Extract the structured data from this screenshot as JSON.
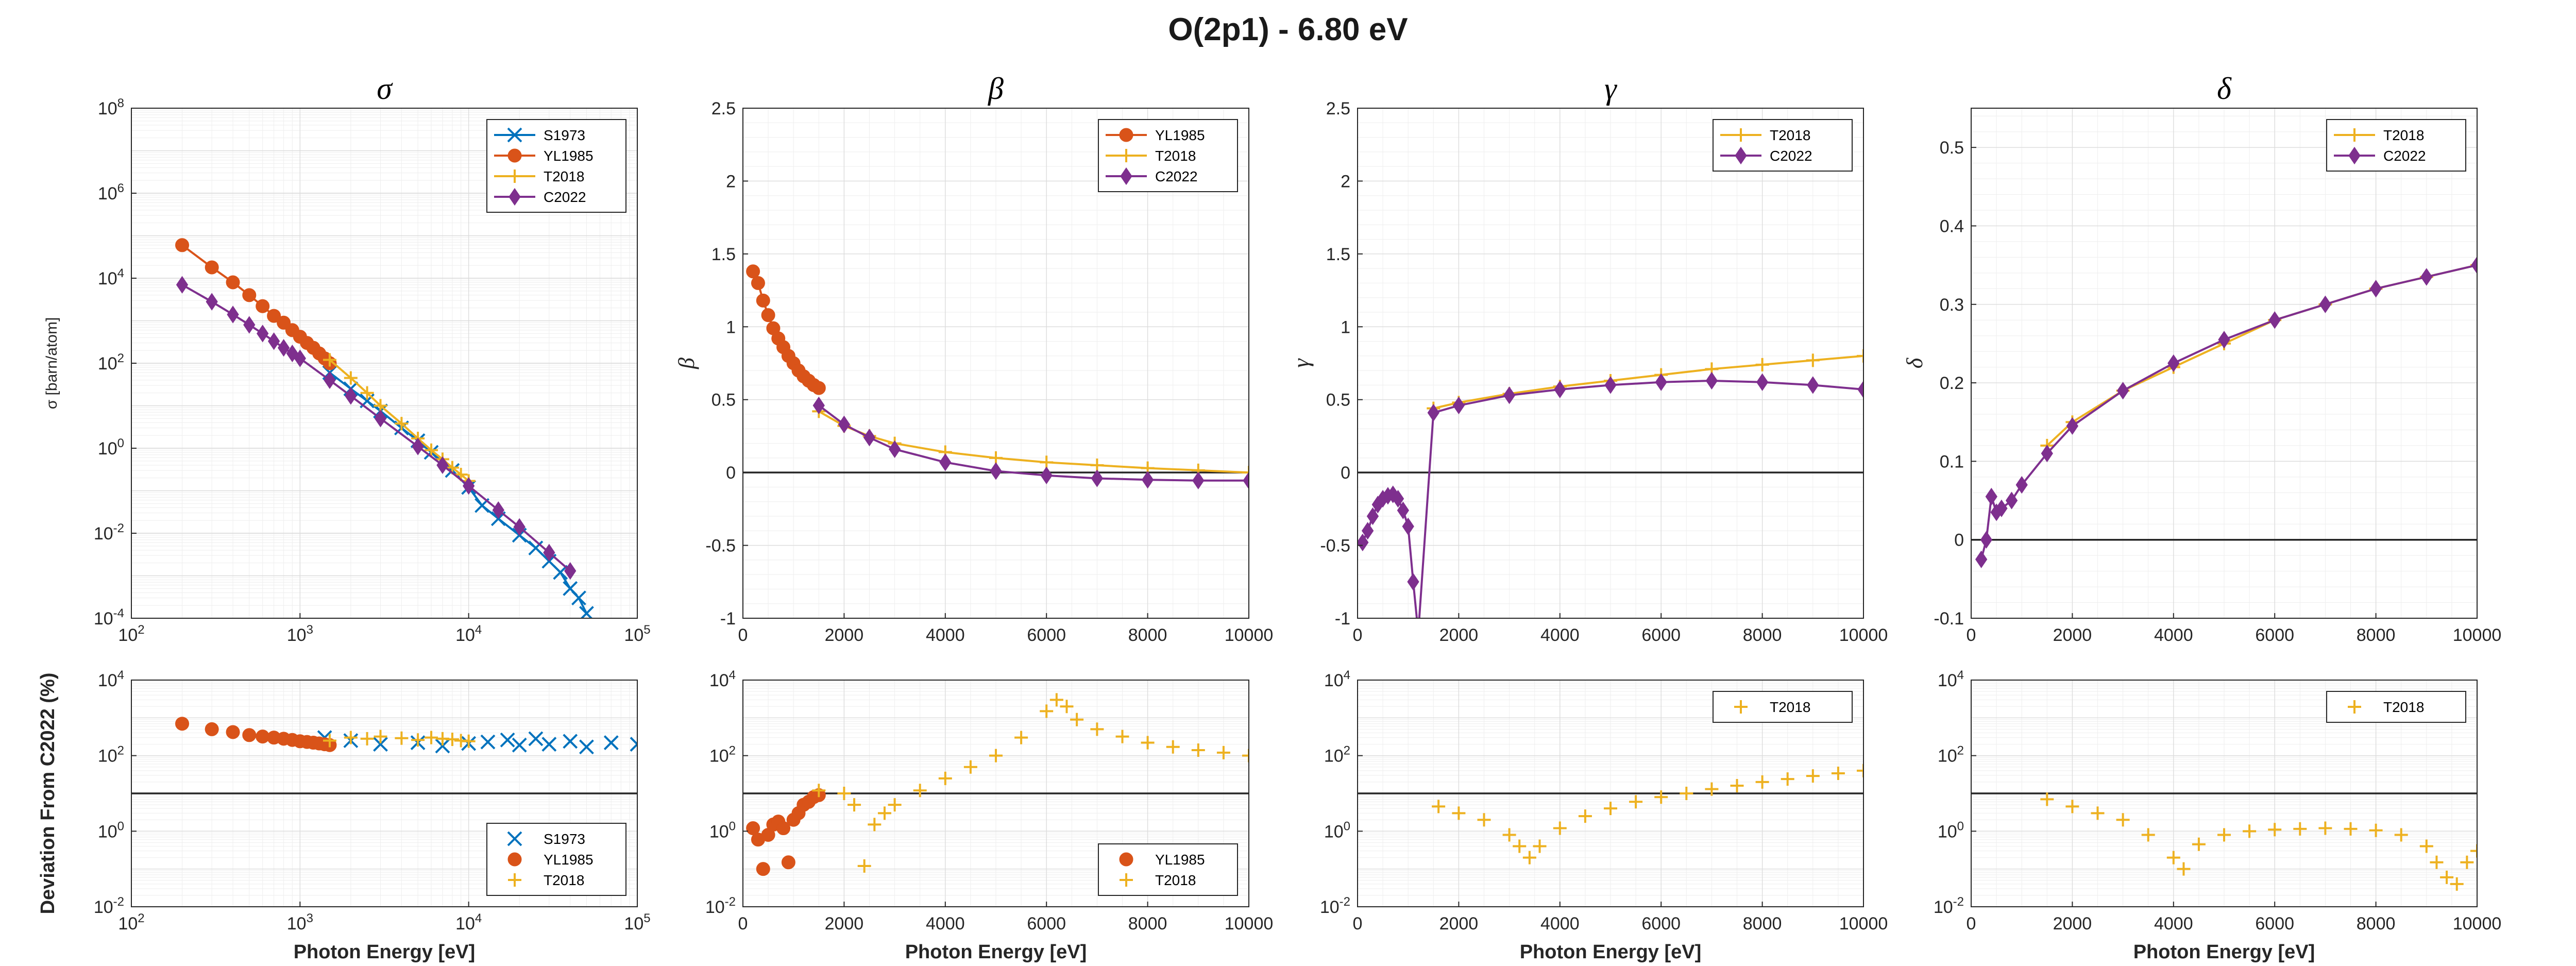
{
  "figure": {
    "title": "O(2p1) - 6.80 eV",
    "shared_xlabel": "Photon Energy [eV]",
    "shared_ylabel_bottom": "Deviation From C2022 (%)"
  },
  "colors": {
    "S1973": "#0072BD",
    "YL1985": "#D95319",
    "T2018": "#EDB120",
    "C2022": "#7E2F8E"
  },
  "chart_data": [
    {
      "id": "sigma-top",
      "type": "line",
      "title": "σ",
      "ylabel": "σ [barn/atom]",
      "xscale": "log",
      "yscale": "log",
      "xlim": [
        100,
        100000
      ],
      "ylim": [
        0.0001,
        100000000
      ],
      "x_ticks": [
        100,
        1000,
        10000,
        100000
      ],
      "y_ticks": [
        0.0001,
        0.01,
        1,
        100,
        10000,
        1000000,
        100000000
      ],
      "legend": {
        "position": "top-right",
        "entries": [
          "S1973",
          "YL1985",
          "T2018",
          "C2022"
        ]
      },
      "series": [
        {
          "name": "S1973",
          "marker": "x",
          "x": [
            1500,
            2000,
            2500,
            3000,
            4000,
            5000,
            6000,
            8000,
            10000,
            12000,
            15000,
            20000,
            25000,
            30000,
            35000,
            40000,
            45000,
            50000
          ],
          "y": [
            60,
            25,
            13,
            7.5,
            3,
            1.5,
            0.8,
            0.3,
            0.12,
            0.045,
            0.022,
            0.009,
            0.0045,
            0.0022,
            0.0012,
            0.0005,
            0.0003,
            0.00013
          ]
        },
        {
          "name": "YL1985",
          "marker": "o",
          "x": [
            200,
            300,
            400,
            500,
            600,
            700,
            800,
            900,
            1000,
            1100,
            1200,
            1300,
            1400,
            1500
          ],
          "y": [
            60000,
            18000,
            8000,
            4000,
            2200,
            1300,
            900,
            600,
            420,
            300,
            230,
            170,
            130,
            100
          ]
        },
        {
          "name": "T2018",
          "marker": "+",
          "x": [
            1500,
            2000,
            2500,
            3000,
            4000,
            5000,
            6000,
            7000,
            8000,
            9000,
            10000
          ],
          "y": [
            120,
            45,
            20,
            10,
            3.8,
            1.7,
            0.9,
            0.55,
            0.35,
            0.24,
            0.17
          ]
        },
        {
          "name": "C2022",
          "marker": "d",
          "x": [
            200,
            300,
            400,
            500,
            600,
            700,
            800,
            900,
            1000,
            1500,
            2000,
            3000,
            5000,
            7000,
            10000,
            15000,
            20000,
            30000,
            40000
          ],
          "y": [
            7000,
            2800,
            1400,
            800,
            500,
            330,
            230,
            170,
            130,
            40,
            17,
            5,
            1.1,
            0.4,
            0.13,
            0.035,
            0.014,
            0.0035,
            0.0013
          ]
        }
      ]
    },
    {
      "id": "beta-top",
      "type": "line",
      "title": "β",
      "ylabel": "β",
      "xscale": "linear",
      "yscale": "linear",
      "xlim": [
        0,
        10000
      ],
      "ylim": [
        -1,
        2.5
      ],
      "x_ticks": [
        0,
        2000,
        4000,
        6000,
        8000,
        10000
      ],
      "y_ticks": [
        -1,
        -0.5,
        0,
        0.5,
        1,
        1.5,
        2,
        2.5
      ],
      "zero_line": true,
      "legend": {
        "position": "top-right",
        "entries": [
          "YL1985",
          "T2018",
          "C2022"
        ]
      },
      "series": [
        {
          "name": "YL1985",
          "marker": "o",
          "x": [
            200,
            300,
            400,
            500,
            600,
            700,
            800,
            900,
            1000,
            1100,
            1200,
            1300,
            1400,
            1500
          ],
          "y": [
            1.38,
            1.3,
            1.18,
            1.08,
            0.99,
            0.92,
            0.86,
            0.8,
            0.75,
            0.7,
            0.66,
            0.63,
            0.6,
            0.58
          ]
        },
        {
          "name": "T2018",
          "marker": "+",
          "x": [
            1500,
            2000,
            2500,
            3000,
            4000,
            5000,
            6000,
            7000,
            8000,
            9000,
            10000
          ],
          "y": [
            0.42,
            0.32,
            0.25,
            0.2,
            0.14,
            0.1,
            0.07,
            0.05,
            0.03,
            0.015,
            0.0
          ]
        },
        {
          "name": "C2022",
          "marker": "d",
          "x": [
            1500,
            2000,
            2500,
            3000,
            4000,
            5000,
            6000,
            7000,
            8000,
            9000,
            10000
          ],
          "y": [
            0.46,
            0.33,
            0.24,
            0.16,
            0.07,
            0.01,
            -0.02,
            -0.04,
            -0.05,
            -0.055,
            -0.055
          ]
        }
      ]
    },
    {
      "id": "gamma-top",
      "type": "line",
      "title": "γ",
      "ylabel": "γ",
      "xscale": "linear",
      "yscale": "linear",
      "xlim": [
        0,
        10000
      ],
      "ylim": [
        -1,
        2.5
      ],
      "x_ticks": [
        0,
        2000,
        4000,
        6000,
        8000,
        10000
      ],
      "y_ticks": [
        -1,
        -0.5,
        0,
        0.5,
        1,
        1.5,
        2,
        2.5
      ],
      "zero_line": true,
      "legend": {
        "position": "top-right",
        "entries": [
          "T2018",
          "C2022"
        ]
      },
      "series": [
        {
          "name": "T2018",
          "marker": "+",
          "x": [
            1500,
            2000,
            3000,
            4000,
            5000,
            6000,
            7000,
            8000,
            9000,
            10000
          ],
          "y": [
            0.44,
            0.48,
            0.54,
            0.59,
            0.63,
            0.67,
            0.71,
            0.74,
            0.77,
            0.8
          ]
        },
        {
          "name": "C2022",
          "marker": "d",
          "x": [
            100,
            200,
            300,
            400,
            500,
            600,
            700,
            800,
            900,
            1000,
            1100,
            1200,
            1500,
            2000,
            3000,
            4000,
            5000,
            6000,
            7000,
            8000,
            9000,
            10000
          ],
          "y": [
            -0.48,
            -0.4,
            -0.3,
            -0.22,
            -0.18,
            -0.16,
            -0.15,
            -0.18,
            -0.26,
            -0.37,
            -0.75,
            -1.1,
            0.41,
            0.46,
            0.53,
            0.57,
            0.6,
            0.62,
            0.63,
            0.62,
            0.6,
            0.57
          ]
        }
      ]
    },
    {
      "id": "delta-top",
      "type": "line",
      "title": "δ",
      "ylabel": "δ",
      "xscale": "linear",
      "yscale": "linear",
      "xlim": [
        0,
        10000
      ],
      "ylim": [
        -0.1,
        0.55
      ],
      "x_ticks": [
        0,
        2000,
        4000,
        6000,
        8000,
        10000
      ],
      "y_ticks": [
        -0.1,
        0,
        0.1,
        0.2,
        0.3,
        0.4,
        0.5
      ],
      "zero_line": true,
      "legend": {
        "position": "top-right",
        "entries": [
          "T2018",
          "C2022"
        ]
      },
      "series": [
        {
          "name": "T2018",
          "marker": "+",
          "x": [
            1500,
            2000,
            3000,
            4000,
            5000,
            6000,
            7000,
            8000,
            9000,
            10000
          ],
          "y": [
            0.12,
            0.15,
            0.19,
            0.22,
            0.25,
            0.28,
            0.3,
            0.32,
            0.335,
            0.35
          ]
        },
        {
          "name": "C2022",
          "marker": "d",
          "x": [
            200,
            300,
            400,
            500,
            600,
            800,
            1000,
            1500,
            2000,
            3000,
            4000,
            5000,
            6000,
            7000,
            8000,
            9000,
            10000
          ],
          "y": [
            -0.025,
            0.0,
            0.055,
            0.035,
            0.04,
            0.05,
            0.07,
            0.11,
            0.145,
            0.19,
            0.225,
            0.255,
            0.28,
            0.3,
            0.32,
            0.335,
            0.35
          ]
        }
      ]
    },
    {
      "id": "sigma-bottom",
      "type": "scatter",
      "xlabel": "Photon Energy [eV]",
      "ylabel": "Deviation From C2022 (%)",
      "xscale": "log",
      "yscale": "log",
      "xlim": [
        100,
        100000
      ],
      "ylim": [
        0.01,
        10000
      ],
      "x_ticks": [
        100,
        1000,
        10000,
        100000
      ],
      "y_ticks": [
        0.01,
        1,
        100,
        10000
      ],
      "reference_line": 10,
      "legend": {
        "position": "bottom-right",
        "entries": [
          "S1973",
          "YL1985",
          "T2018"
        ]
      },
      "series": [
        {
          "name": "S1973",
          "marker": "x",
          "x": [
            1400,
            2000,
            3000,
            5000,
            7000,
            10000,
            13000,
            17000,
            20000,
            25000,
            30000,
            40000,
            50000,
            70000,
            100000
          ],
          "y": [
            300,
            250,
            200,
            220,
            180,
            210,
            230,
            260,
            190,
            280,
            200,
            240,
            170,
            220,
            200
          ]
        },
        {
          "name": "YL1985",
          "marker": "o",
          "x": [
            200,
            300,
            400,
            500,
            600,
            700,
            800,
            900,
            1000,
            1100,
            1200,
            1300,
            1400,
            1500
          ],
          "y": [
            700,
            500,
            420,
            350,
            320,
            300,
            280,
            260,
            240,
            230,
            220,
            210,
            200,
            190
          ]
        },
        {
          "name": "T2018",
          "marker": "+",
          "x": [
            1500,
            2000,
            2500,
            3000,
            4000,
            5000,
            6000,
            7000,
            8000,
            9000,
            10000
          ],
          "y": [
            250,
            300,
            280,
            320,
            290,
            260,
            300,
            280,
            270,
            250,
            240
          ]
        }
      ]
    },
    {
      "id": "beta-bottom",
      "type": "scatter",
      "xlabel": "Photon Energy [eV]",
      "xscale": "linear",
      "yscale": "log",
      "xlim": [
        0,
        10000
      ],
      "ylim": [
        0.01,
        10000
      ],
      "x_ticks": [
        0,
        2000,
        4000,
        6000,
        8000,
        10000
      ],
      "y_ticks": [
        0.01,
        1,
        100,
        10000
      ],
      "reference_line": 10,
      "legend": {
        "position": "bottom-right",
        "entries": [
          "YL1985",
          "T2018"
        ]
      },
      "series": [
        {
          "name": "YL1985",
          "marker": "o",
          "x": [
            200,
            300,
            400,
            500,
            600,
            700,
            800,
            900,
            1000,
            1100,
            1200,
            1300,
            1400,
            1500
          ],
          "y": [
            1.2,
            0.6,
            0.1,
            0.8,
            1.5,
            1.8,
            1.2,
            0.15,
            2.0,
            3.0,
            5.0,
            6.0,
            8.0,
            9.0
          ]
        },
        {
          "name": "T2018",
          "marker": "+",
          "x": [
            1500,
            2000,
            2200,
            2400,
            2600,
            2800,
            3000,
            3500,
            4000,
            4500,
            5000,
            5500,
            6000,
            6200,
            6400,
            6600,
            7000,
            7500,
            8000,
            8500,
            9000,
            9500,
            10000
          ],
          "y": [
            12,
            10,
            5,
            0.12,
            1.5,
            3,
            5,
            12,
            25,
            50,
            100,
            300,
            1500,
            3000,
            2000,
            900,
            500,
            320,
            220,
            170,
            140,
            120,
            100
          ]
        }
      ]
    },
    {
      "id": "gamma-bottom",
      "type": "scatter",
      "xlabel": "Photon Energy [eV]",
      "xscale": "linear",
      "yscale": "log",
      "xlim": [
        0,
        10000
      ],
      "ylim": [
        0.01,
        10000
      ],
      "x_ticks": [
        0,
        2000,
        4000,
        6000,
        8000,
        10000
      ],
      "y_ticks": [
        0.01,
        1,
        100,
        10000
      ],
      "reference_line": 10,
      "legend": {
        "position": "top-right",
        "entries": [
          "T2018"
        ]
      },
      "series": [
        {
          "name": "T2018",
          "marker": "+",
          "x": [
            1600,
            2000,
            2500,
            3000,
            3200,
            3400,
            3600,
            4000,
            4500,
            5000,
            5500,
            6000,
            6500,
            7000,
            7500,
            8000,
            8500,
            9000,
            9500,
            10000
          ],
          "y": [
            4.5,
            3,
            2,
            0.8,
            0.4,
            0.2,
            0.4,
            1.2,
            2.5,
            4,
            6,
            8,
            10,
            13,
            16,
            20,
            24,
            29,
            34,
            40
          ]
        }
      ]
    },
    {
      "id": "delta-bottom",
      "type": "scatter",
      "xlabel": "Photon Energy [eV]",
      "xscale": "linear",
      "yscale": "log",
      "xlim": [
        0,
        10000
      ],
      "ylim": [
        0.01,
        10000
      ],
      "x_ticks": [
        0,
        2000,
        4000,
        6000,
        8000,
        10000
      ],
      "y_ticks": [
        0.01,
        1,
        100,
        10000
      ],
      "reference_line": 10,
      "legend": {
        "position": "top-right",
        "entries": [
          "T2018"
        ]
      },
      "series": [
        {
          "name": "T2018",
          "marker": "+",
          "x": [
            1500,
            2000,
            2500,
            3000,
            3500,
            4000,
            4200,
            4500,
            5000,
            5500,
            6000,
            6500,
            7000,
            7500,
            8000,
            8500,
            9000,
            9200,
            9400,
            9600,
            9800,
            10000
          ],
          "y": [
            7,
            4.5,
            3,
            2,
            0.8,
            0.2,
            0.1,
            0.45,
            0.8,
            1.0,
            1.1,
            1.15,
            1.2,
            1.15,
            1.05,
            0.8,
            0.4,
            0.15,
            0.06,
            0.04,
            0.15,
            0.3
          ]
        }
      ]
    }
  ]
}
